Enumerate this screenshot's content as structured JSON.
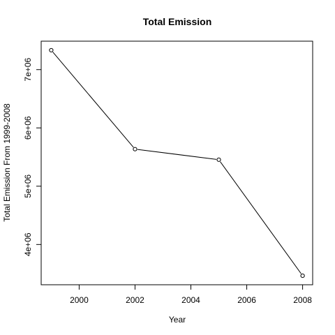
{
  "chart_data": {
    "type": "line",
    "title": "Total Emission",
    "xlabel": "Year",
    "ylabel": "Total Emission From 1999-2008",
    "x": [
      1999,
      2002,
      2005,
      2008
    ],
    "y": [
      7332967,
      5635780,
      5454703,
      3464206
    ],
    "xlim": [
      1999,
      2008
    ],
    "ylim": [
      3464206,
      7332967
    ],
    "xticks": [
      2000,
      2002,
      2004,
      2006,
      2008
    ],
    "xtick_labels": [
      "2000",
      "2002",
      "2004",
      "2006",
      "2008"
    ],
    "yticks": [
      4000000,
      5000000,
      6000000,
      7000000
    ],
    "ytick_labels": [
      "4e+06",
      "5e+06",
      "6e+06",
      "7e+06"
    ],
    "marker": "open-circle",
    "line_color": "#000000",
    "grid": false,
    "legend": false
  }
}
